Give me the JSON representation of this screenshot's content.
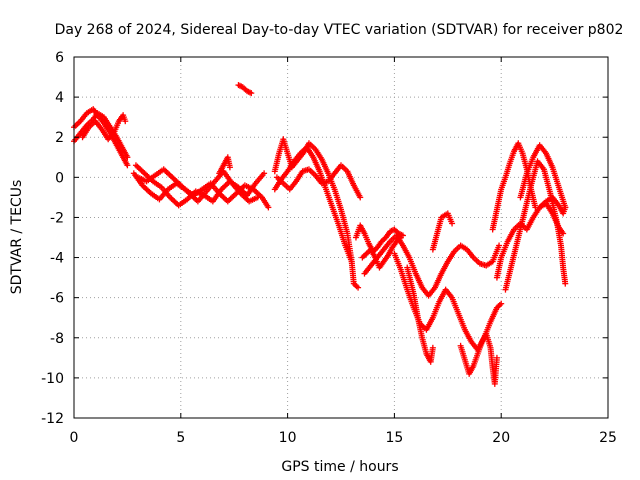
{
  "chart_data": {
    "type": "scatter",
    "title": "Day 268 of 2024, Sidereal Day-to-day VTEC variation (SDTVAR) for receiver p802",
    "xlabel": "GPS time / hours",
    "ylabel": "SDTVAR / TECUs",
    "xlim": [
      0,
      25
    ],
    "ylim": [
      -12,
      6
    ],
    "xticks": [
      "0",
      "5",
      "10",
      "15",
      "20",
      "25"
    ],
    "yticks": [
      "-12",
      "-10",
      "-8",
      "-6",
      "-4",
      "-2",
      "0",
      "2",
      "4",
      "6"
    ],
    "grid": true,
    "marker": "+",
    "color": "#ff0000",
    "tracks": [
      [
        [
          0.0,
          2.5
        ],
        [
          0.3,
          2.8
        ],
        [
          0.6,
          3.2
        ],
        [
          0.9,
          3.4
        ],
        [
          1.1,
          3.1
        ],
        [
          1.4,
          2.7
        ],
        [
          1.7,
          2.2
        ],
        [
          2.0,
          1.6
        ],
        [
          2.3,
          1.0
        ],
        [
          2.5,
          0.6
        ]
      ],
      [
        [
          0.0,
          1.8
        ],
        [
          0.3,
          2.2
        ],
        [
          0.6,
          2.6
        ],
        [
          0.9,
          2.9
        ],
        [
          1.1,
          3.2
        ],
        [
          1.4,
          3.0
        ],
        [
          1.7,
          2.5
        ],
        [
          2.0,
          2.0
        ],
        [
          2.3,
          1.4
        ],
        [
          2.5,
          1.0
        ]
      ],
      [
        [
          0.4,
          2.0
        ],
        [
          0.7,
          2.5
        ],
        [
          1.0,
          2.8
        ],
        [
          1.3,
          2.4
        ],
        [
          1.6,
          1.9
        ],
        [
          1.9,
          2.3
        ],
        [
          2.1,
          2.8
        ],
        [
          2.3,
          3.1
        ],
        [
          2.4,
          2.8
        ]
      ],
      [
        [
          2.8,
          0.2
        ],
        [
          3.2,
          -0.4
        ],
        [
          3.6,
          -0.8
        ],
        [
          4.0,
          -1.1
        ],
        [
          4.4,
          -0.6
        ],
        [
          4.8,
          -0.3
        ],
        [
          5.2,
          -0.6
        ],
        [
          5.6,
          -0.9
        ],
        [
          6.0,
          -0.6
        ],
        [
          6.4,
          -0.3
        ],
        [
          6.8,
          -0.8
        ],
        [
          7.2,
          -1.2
        ],
        [
          7.6,
          -0.8
        ],
        [
          8.0,
          -0.4
        ],
        [
          8.4,
          -0.6
        ],
        [
          8.8,
          -1.0
        ],
        [
          9.1,
          -1.5
        ]
      ],
      [
        [
          2.9,
          0.6
        ],
        [
          3.3,
          0.2
        ],
        [
          3.7,
          -0.2
        ],
        [
          4.1,
          -0.5
        ],
        [
          4.5,
          -1.0
        ],
        [
          4.9,
          -1.4
        ],
        [
          5.3,
          -1.1
        ],
        [
          5.7,
          -0.7
        ],
        [
          6.1,
          -0.9
        ],
        [
          6.5,
          -1.2
        ],
        [
          6.9,
          -0.6
        ],
        [
          7.3,
          -0.2
        ],
        [
          7.7,
          -0.5
        ],
        [
          8.1,
          -0.9
        ],
        [
          8.5,
          -0.3
        ],
        [
          8.9,
          0.2
        ]
      ],
      [
        [
          3.0,
          0.0
        ],
        [
          3.4,
          -0.2
        ],
        [
          3.8,
          0.1
        ],
        [
          4.2,
          0.4
        ],
        [
          4.6,
          0.0
        ],
        [
          5.0,
          -0.4
        ],
        [
          5.4,
          -0.8
        ],
        [
          5.8,
          -1.2
        ],
        [
          6.2,
          -0.7
        ],
        [
          6.6,
          -0.2
        ],
        [
          7.0,
          0.3
        ],
        [
          7.4,
          -0.3
        ],
        [
          7.8,
          -0.8
        ],
        [
          8.2,
          -1.2
        ],
        [
          8.6,
          -1.0
        ]
      ],
      [
        [
          6.8,
          0.2
        ],
        [
          7.0,
          0.6
        ],
        [
          7.2,
          1.0
        ],
        [
          7.3,
          0.5
        ]
      ],
      [
        [
          7.7,
          4.6
        ],
        [
          7.9,
          4.5
        ],
        [
          8.1,
          4.3
        ],
        [
          8.3,
          4.2
        ]
      ],
      [
        [
          9.4,
          0.3
        ],
        [
          9.6,
          1.2
        ],
        [
          9.8,
          1.9
        ],
        [
          10.0,
          1.2
        ],
        [
          10.2,
          0.5
        ],
        [
          10.5,
          0.9
        ],
        [
          10.8,
          1.3
        ],
        [
          11.0,
          1.7
        ],
        [
          11.3,
          1.4
        ],
        [
          11.6,
          0.9
        ],
        [
          11.9,
          0.2
        ],
        [
          12.2,
          -0.6
        ],
        [
          12.5,
          -1.6
        ],
        [
          12.8,
          -2.8
        ],
        [
          13.0,
          -4.2
        ],
        [
          13.1,
          -5.3
        ],
        [
          13.3,
          -5.5
        ]
      ],
      [
        [
          9.4,
          -0.6
        ],
        [
          9.7,
          -0.1
        ],
        [
          10.0,
          0.3
        ],
        [
          10.3,
          0.8
        ],
        [
          10.6,
          1.2
        ],
        [
          10.9,
          1.5
        ],
        [
          11.2,
          1.0
        ],
        [
          11.5,
          0.3
        ],
        [
          11.8,
          -0.6
        ],
        [
          12.1,
          -1.5
        ],
        [
          12.4,
          -2.4
        ],
        [
          12.7,
          -3.4
        ],
        [
          13.0,
          -4.2
        ]
      ],
      [
        [
          9.5,
          0.0
        ],
        [
          9.8,
          -0.3
        ],
        [
          10.1,
          -0.6
        ],
        [
          10.4,
          -0.2
        ],
        [
          10.7,
          0.3
        ],
        [
          11.0,
          0.4
        ],
        [
          11.3,
          0.1
        ],
        [
          11.6,
          -0.3
        ],
        [
          11.9,
          -0.2
        ],
        [
          12.2,
          0.2
        ],
        [
          12.5,
          0.6
        ],
        [
          12.8,
          0.3
        ],
        [
          13.1,
          -0.4
        ],
        [
          13.4,
          -1.0
        ]
      ],
      [
        [
          13.2,
          -3.0
        ],
        [
          13.4,
          -2.4
        ],
        [
          13.6,
          -2.8
        ],
        [
          13.8,
          -3.3
        ],
        [
          14.0,
          -3.7
        ],
        [
          14.2,
          -3.5
        ],
        [
          14.4,
          -3.2
        ],
        [
          14.6,
          -3.0
        ],
        [
          14.8,
          -2.7
        ],
        [
          15.0,
          -2.6
        ],
        [
          15.2,
          -2.8
        ],
        [
          15.4,
          -2.9
        ]
      ],
      [
        [
          13.5,
          -4.0
        ],
        [
          13.7,
          -3.8
        ],
        [
          13.9,
          -3.6
        ],
        [
          14.1,
          -4.0
        ],
        [
          14.3,
          -4.5
        ],
        [
          14.5,
          -4.2
        ],
        [
          14.7,
          -3.9
        ],
        [
          14.9,
          -3.5
        ],
        [
          15.1,
          -3.2
        ],
        [
          15.3,
          -3.0
        ]
      ],
      [
        [
          13.6,
          -4.8
        ],
        [
          13.9,
          -4.4
        ],
        [
          14.2,
          -4.0
        ],
        [
          14.5,
          -3.6
        ],
        [
          14.8,
          -3.2
        ],
        [
          15.1,
          -2.9
        ],
        [
          15.4,
          -3.4
        ],
        [
          15.7,
          -4.0
        ],
        [
          16.0,
          -4.8
        ],
        [
          16.3,
          -5.5
        ],
        [
          16.6,
          -5.9
        ],
        [
          16.9,
          -5.5
        ],
        [
          17.2,
          -4.8
        ],
        [
          17.5,
          -4.2
        ],
        [
          17.8,
          -3.7
        ],
        [
          18.1,
          -3.4
        ],
        [
          18.4,
          -3.6
        ],
        [
          18.7,
          -4.0
        ],
        [
          19.0,
          -4.3
        ],
        [
          19.3,
          -4.4
        ],
        [
          19.6,
          -4.2
        ],
        [
          19.9,
          -3.4
        ]
      ],
      [
        [
          15.0,
          -3.8
        ],
        [
          15.3,
          -4.6
        ],
        [
          15.6,
          -5.6
        ],
        [
          15.9,
          -6.5
        ],
        [
          16.2,
          -7.3
        ],
        [
          16.5,
          -7.6
        ],
        [
          16.8,
          -7.0
        ],
        [
          17.1,
          -6.2
        ],
        [
          17.4,
          -5.6
        ],
        [
          17.7,
          -6.0
        ],
        [
          18.0,
          -6.8
        ],
        [
          18.3,
          -7.6
        ],
        [
          18.6,
          -8.2
        ],
        [
          18.9,
          -8.6
        ],
        [
          19.2,
          -8.0
        ],
        [
          19.5,
          -7.2
        ],
        [
          19.8,
          -6.5
        ],
        [
          20.0,
          -6.3
        ]
      ],
      [
        [
          15.6,
          -4.5
        ],
        [
          15.9,
          -5.8
        ],
        [
          16.1,
          -7.0
        ],
        [
          16.3,
          -8.0
        ],
        [
          16.5,
          -8.8
        ],
        [
          16.7,
          -9.2
        ],
        [
          16.8,
          -8.5
        ]
      ],
      [
        [
          16.8,
          -3.6
        ],
        [
          17.0,
          -2.8
        ],
        [
          17.2,
          -2.0
        ],
        [
          17.5,
          -1.8
        ],
        [
          17.7,
          -2.3
        ]
      ],
      [
        [
          18.1,
          -8.4
        ],
        [
          18.3,
          -9.1
        ],
        [
          18.5,
          -9.8
        ],
        [
          18.7,
          -9.4
        ],
        [
          18.9,
          -8.8
        ],
        [
          19.1,
          -8.2
        ],
        [
          19.3,
          -7.8
        ],
        [
          19.5,
          -8.5
        ],
        [
          19.6,
          -9.5
        ],
        [
          19.7,
          -10.3
        ],
        [
          19.8,
          -9.0
        ]
      ],
      [
        [
          19.6,
          -2.6
        ],
        [
          19.8,
          -1.6
        ],
        [
          20.0,
          -0.6
        ],
        [
          20.2,
          0.0
        ],
        [
          20.4,
          0.7
        ],
        [
          20.6,
          1.3
        ],
        [
          20.8,
          1.7
        ],
        [
          21.0,
          1.2
        ],
        [
          21.2,
          0.4
        ],
        [
          21.4,
          -0.6
        ],
        [
          21.6,
          -1.5
        ]
      ],
      [
        [
          19.8,
          -5.0
        ],
        [
          20.0,
          -4.0
        ],
        [
          20.3,
          -3.2
        ],
        [
          20.6,
          -2.6
        ],
        [
          20.9,
          -2.3
        ],
        [
          21.2,
          -2.6
        ],
        [
          21.5,
          -2.0
        ],
        [
          21.8,
          -1.5
        ],
        [
          22.1,
          -1.3
        ],
        [
          22.4,
          -1.8
        ],
        [
          22.7,
          -2.5
        ],
        [
          22.9,
          -2.8
        ]
      ],
      [
        [
          20.2,
          -5.6
        ],
        [
          20.5,
          -4.3
        ],
        [
          20.8,
          -3.0
        ],
        [
          21.1,
          -1.7
        ],
        [
          21.4,
          -0.4
        ],
        [
          21.7,
          0.8
        ],
        [
          22.0,
          0.4
        ],
        [
          22.3,
          -0.8
        ],
        [
          22.6,
          -2.2
        ],
        [
          22.8,
          -3.4
        ],
        [
          22.9,
          -4.5
        ],
        [
          23.0,
          -5.3
        ]
      ],
      [
        [
          20.9,
          -1.0
        ],
        [
          21.2,
          0.2
        ],
        [
          21.5,
          1.0
        ],
        [
          21.8,
          1.6
        ],
        [
          22.1,
          1.2
        ],
        [
          22.4,
          0.5
        ],
        [
          22.7,
          -0.5
        ],
        [
          23.0,
          -1.5
        ]
      ],
      [
        [
          21.8,
          -1.5
        ],
        [
          22.1,
          -1.2
        ],
        [
          22.4,
          -1.0
        ],
        [
          22.7,
          -1.4
        ],
        [
          22.9,
          -1.8
        ],
        [
          23.0,
          -1.5
        ]
      ]
    ]
  }
}
